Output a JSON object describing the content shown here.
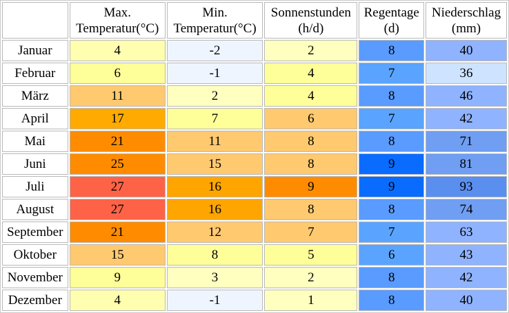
{
  "headers": [
    {
      "line1": "Max.",
      "line2": "Temperatur(°C)"
    },
    {
      "line1": "Min.",
      "line2": "Temperatur(°C)"
    },
    {
      "line1": "Sonnenstunden",
      "line2": "(h/d)"
    },
    {
      "line1": "Regentage",
      "line2": "(d)"
    },
    {
      "line1": "Niederschlag",
      "line2": "(mm)"
    }
  ],
  "rows": [
    {
      "month": "Januar",
      "cells": [
        {
          "v": "4",
          "c": "#ffffaf"
        },
        {
          "v": "-2",
          "c": "#eef5ff"
        },
        {
          "v": "2",
          "c": "#ffffbf"
        },
        {
          "v": "8",
          "c": "#5a9bff"
        },
        {
          "v": "40",
          "c": "#8fb3ff"
        }
      ]
    },
    {
      "month": "Februar",
      "cells": [
        {
          "v": "6",
          "c": "#ffff99"
        },
        {
          "v": "-1",
          "c": "#eef5ff"
        },
        {
          "v": "4",
          "c": "#ffff99"
        },
        {
          "v": "7",
          "c": "#5aa4ff"
        },
        {
          "v": "36",
          "c": "#cde3ff"
        }
      ]
    },
    {
      "month": "März",
      "cells": [
        {
          "v": "11",
          "c": "#ffc970"
        },
        {
          "v": "2",
          "c": "#ffffbf"
        },
        {
          "v": "4",
          "c": "#ffff99"
        },
        {
          "v": "8",
          "c": "#5a9bff"
        },
        {
          "v": "46",
          "c": "#8fb3ff"
        }
      ]
    },
    {
      "month": "April",
      "cells": [
        {
          "v": "17",
          "c": "#ffaa00"
        },
        {
          "v": "7",
          "c": "#ffff99"
        },
        {
          "v": "6",
          "c": "#ffc970"
        },
        {
          "v": "7",
          "c": "#5aa4ff"
        },
        {
          "v": "42",
          "c": "#8fb3ff"
        }
      ]
    },
    {
      "month": "Mai",
      "cells": [
        {
          "v": "21",
          "c": "#ff8c00"
        },
        {
          "v": "11",
          "c": "#ffc970"
        },
        {
          "v": "8",
          "c": "#ffc970"
        },
        {
          "v": "8",
          "c": "#5a9bff"
        },
        {
          "v": "71",
          "c": "#6f9ef2"
        }
      ]
    },
    {
      "month": "Juni",
      "cells": [
        {
          "v": "25",
          "c": "#ff8c00"
        },
        {
          "v": "15",
          "c": "#ffc970"
        },
        {
          "v": "8",
          "c": "#ffc970"
        },
        {
          "v": "9",
          "c": "#0a6cff"
        },
        {
          "v": "81",
          "c": "#6f9ef2"
        }
      ]
    },
    {
      "month": "Juli",
      "cells": [
        {
          "v": "27",
          "c": "#ff6347"
        },
        {
          "v": "16",
          "c": "#ffa500"
        },
        {
          "v": "9",
          "c": "#ff8c00"
        },
        {
          "v": "9",
          "c": "#0a6cff"
        },
        {
          "v": "93",
          "c": "#5a8ff0"
        }
      ]
    },
    {
      "month": "August",
      "cells": [
        {
          "v": "27",
          "c": "#ff6347"
        },
        {
          "v": "16",
          "c": "#ffa500"
        },
        {
          "v": "8",
          "c": "#ffc970"
        },
        {
          "v": "8",
          "c": "#5a9bff"
        },
        {
          "v": "74",
          "c": "#6f9ef2"
        }
      ]
    },
    {
      "month": "September",
      "cells": [
        {
          "v": "21",
          "c": "#ff8c00"
        },
        {
          "v": "12",
          "c": "#ffc970"
        },
        {
          "v": "7",
          "c": "#ffc970"
        },
        {
          "v": "7",
          "c": "#5aa4ff"
        },
        {
          "v": "63",
          "c": "#8fb3ff"
        }
      ]
    },
    {
      "month": "Oktober",
      "cells": [
        {
          "v": "15",
          "c": "#ffc970"
        },
        {
          "v": "8",
          "c": "#ffff99"
        },
        {
          "v": "5",
          "c": "#ffff99"
        },
        {
          "v": "6",
          "c": "#5aa4ff"
        },
        {
          "v": "43",
          "c": "#8fb3ff"
        }
      ]
    },
    {
      "month": "November",
      "cells": [
        {
          "v": "9",
          "c": "#ffff99"
        },
        {
          "v": "3",
          "c": "#ffffbf"
        },
        {
          "v": "2",
          "c": "#ffffbf"
        },
        {
          "v": "8",
          "c": "#5a9bff"
        },
        {
          "v": "42",
          "c": "#8fb3ff"
        }
      ]
    },
    {
      "month": "Dezember",
      "cells": [
        {
          "v": "4",
          "c": "#ffffaf"
        },
        {
          "v": "-1",
          "c": "#eef5ff"
        },
        {
          "v": "1",
          "c": "#ffffbf"
        },
        {
          "v": "8",
          "c": "#5a9bff"
        },
        {
          "v": "40",
          "c": "#8fb3ff"
        }
      ]
    }
  ]
}
